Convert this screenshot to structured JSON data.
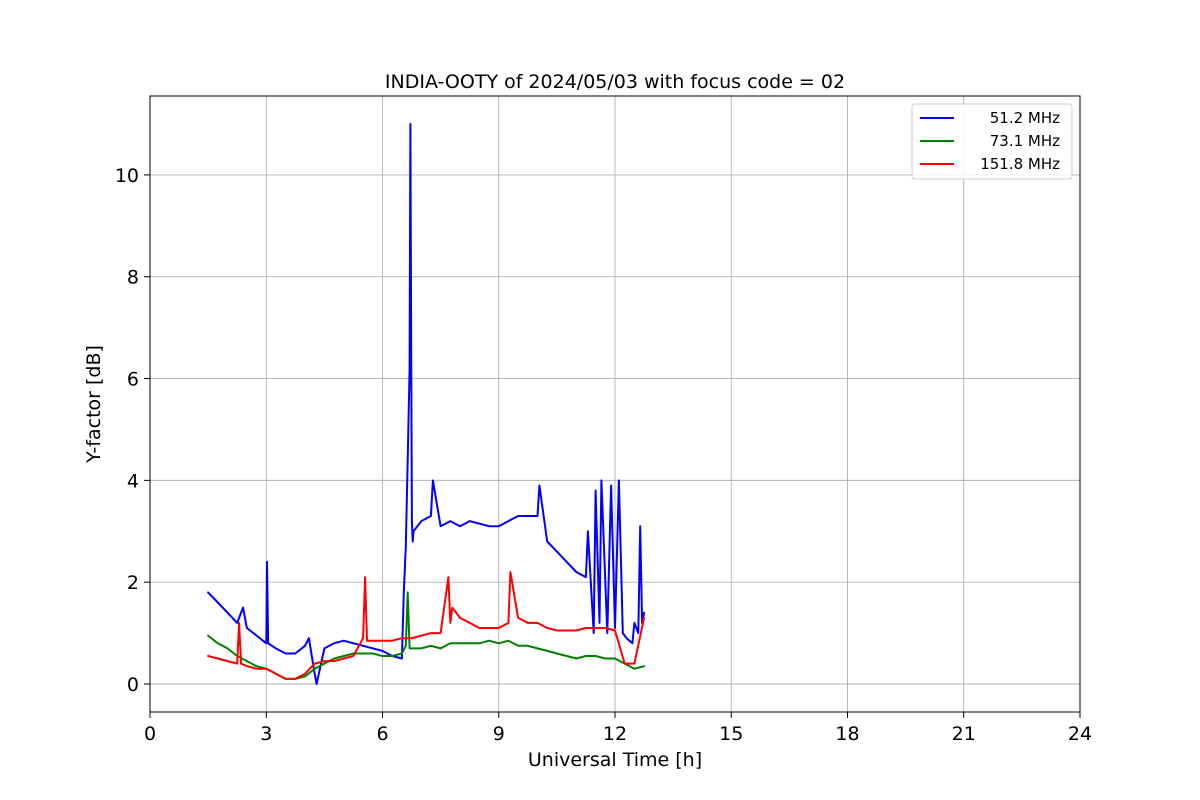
{
  "chart_data": {
    "type": "line",
    "title": "INDIA-OOTY of 2024/05/03 with focus code = 02",
    "xlabel": "Universal Time [h]",
    "ylabel": "Y-factor [dB]",
    "xlim": [
      0,
      24
    ],
    "ylim": [
      -0.55,
      11.55
    ],
    "x_ticks": [
      0,
      3,
      6,
      9,
      12,
      15,
      18,
      21,
      24
    ],
    "x_tick_labels": [
      "0",
      "3",
      "6",
      "9",
      "12",
      "15",
      "18",
      "21",
      "24"
    ],
    "y_ticks": [
      0,
      2,
      4,
      6,
      8,
      10
    ],
    "y_tick_labels": [
      "0",
      "2",
      "4",
      "6",
      "8",
      "10"
    ],
    "grid": true,
    "legend_position": "top-right",
    "series": [
      {
        "name": "51.2 MHz",
        "color": "#0000ff",
        "x": [
          1.5,
          1.75,
          2.0,
          2.25,
          2.4,
          2.5,
          2.75,
          3.0,
          3.02,
          3.05,
          3.25,
          3.5,
          3.75,
          4.0,
          4.1,
          4.25,
          4.3,
          4.5,
          4.75,
          5.0,
          5.25,
          5.5,
          5.75,
          6.0,
          6.25,
          6.5,
          6.55,
          6.6,
          6.65,
          6.7,
          6.72,
          6.74,
          6.76,
          6.78,
          6.8,
          7.0,
          7.25,
          7.3,
          7.5,
          7.75,
          8.0,
          8.25,
          8.5,
          8.75,
          9.0,
          9.25,
          9.5,
          9.75,
          10.0,
          10.05,
          10.25,
          10.5,
          10.75,
          11.0,
          11.25,
          11.3,
          11.45,
          11.5,
          11.6,
          11.65,
          11.8,
          11.9,
          12.0,
          12.1,
          12.2,
          12.3,
          12.45,
          12.5,
          12.6,
          12.65,
          12.7,
          12.75
        ],
        "values": [
          1.8,
          1.6,
          1.4,
          1.2,
          1.5,
          1.1,
          0.95,
          0.8,
          2.4,
          0.8,
          0.7,
          0.6,
          0.6,
          0.75,
          0.9,
          0.2,
          0.0,
          0.7,
          0.8,
          0.85,
          0.8,
          0.75,
          0.7,
          0.65,
          0.55,
          0.5,
          1.8,
          2.7,
          4.4,
          6.2,
          11.0,
          6.6,
          3.2,
          2.8,
          3.0,
          3.2,
          3.3,
          4.0,
          3.1,
          3.2,
          3.1,
          3.2,
          3.15,
          3.1,
          3.1,
          3.2,
          3.3,
          3.3,
          3.3,
          3.9,
          2.8,
          2.6,
          2.4,
          2.2,
          2.1,
          3.0,
          1.0,
          3.8,
          1.2,
          4.0,
          1.0,
          3.9,
          1.1,
          4.0,
          1.0,
          0.9,
          0.8,
          1.2,
          1.0,
          3.1,
          1.2,
          1.4
        ]
      },
      {
        "name": "73.1 MHz",
        "color": "#008000",
        "x": [
          1.5,
          1.75,
          2.0,
          2.25,
          2.5,
          2.75,
          3.0,
          3.25,
          3.5,
          3.75,
          4.0,
          4.25,
          4.5,
          4.75,
          5.0,
          5.25,
          5.5,
          5.75,
          6.0,
          6.25,
          6.5,
          6.6,
          6.65,
          6.7,
          6.8,
          7.0,
          7.25,
          7.5,
          7.75,
          8.0,
          8.25,
          8.5,
          8.75,
          9.0,
          9.25,
          9.5,
          9.75,
          10.0,
          10.25,
          10.5,
          10.75,
          11.0,
          11.25,
          11.5,
          11.75,
          12.0,
          12.25,
          12.5,
          12.75
        ],
        "values": [
          0.95,
          0.8,
          0.7,
          0.55,
          0.45,
          0.35,
          0.3,
          0.2,
          0.1,
          0.1,
          0.15,
          0.3,
          0.4,
          0.5,
          0.55,
          0.6,
          0.6,
          0.6,
          0.55,
          0.55,
          0.6,
          0.75,
          1.8,
          0.7,
          0.7,
          0.7,
          0.75,
          0.7,
          0.8,
          0.8,
          0.8,
          0.8,
          0.85,
          0.8,
          0.85,
          0.75,
          0.75,
          0.7,
          0.65,
          0.6,
          0.55,
          0.5,
          0.55,
          0.55,
          0.5,
          0.5,
          0.4,
          0.3,
          0.35
        ]
      },
      {
        "name": "151.8 MHz",
        "color": "#ff0000",
        "x": [
          1.5,
          1.75,
          2.0,
          2.25,
          2.3,
          2.35,
          2.5,
          2.75,
          3.0,
          3.25,
          3.5,
          3.75,
          4.0,
          4.25,
          4.5,
          4.75,
          5.0,
          5.25,
          5.5,
          5.55,
          5.6,
          5.75,
          6.0,
          6.25,
          6.5,
          6.75,
          7.0,
          7.25,
          7.5,
          7.7,
          7.75,
          7.8,
          8.0,
          8.25,
          8.5,
          8.75,
          9.0,
          9.25,
          9.3,
          9.5,
          9.75,
          10.0,
          10.25,
          10.5,
          10.75,
          11.0,
          11.25,
          11.5,
          11.75,
          12.0,
          12.25,
          12.5,
          12.75
        ],
        "values": [
          0.55,
          0.5,
          0.45,
          0.4,
          1.2,
          0.4,
          0.35,
          0.3,
          0.3,
          0.2,
          0.1,
          0.1,
          0.2,
          0.4,
          0.45,
          0.45,
          0.5,
          0.55,
          0.9,
          2.1,
          0.85,
          0.85,
          0.85,
          0.85,
          0.9,
          0.9,
          0.95,
          1.0,
          1.0,
          2.1,
          1.2,
          1.5,
          1.3,
          1.2,
          1.1,
          1.1,
          1.1,
          1.2,
          2.2,
          1.3,
          1.2,
          1.2,
          1.1,
          1.05,
          1.05,
          1.05,
          1.1,
          1.1,
          1.1,
          1.05,
          0.4,
          0.4,
          1.3
        ]
      }
    ]
  }
}
